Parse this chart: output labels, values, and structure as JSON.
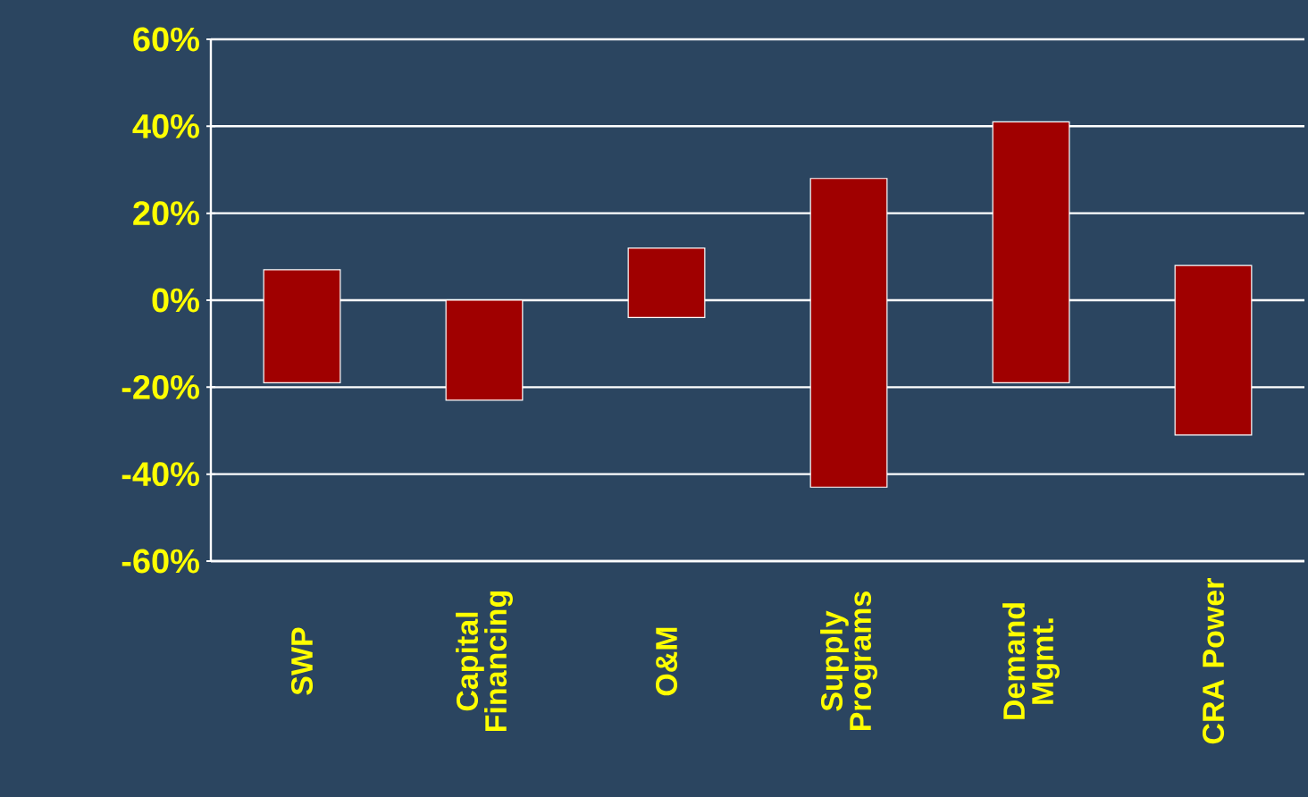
{
  "chart_data": {
    "type": "bar",
    "categories": [
      "SWP",
      "Capital Financing",
      "O&M",
      "Supply Programs",
      "Demand Mgmt.",
      "CRA Power"
    ],
    "base": [
      -19,
      -23,
      -4,
      -43,
      -19,
      -31
    ],
    "values": [
      26,
      23,
      16,
      71,
      60,
      39
    ],
    "color": "#a00000",
    "ylim": [
      -60,
      60
    ],
    "yticks": [
      {
        "value": -60,
        "label": "-60%"
      },
      {
        "value": -40,
        "label": "-40%"
      },
      {
        "value": -20,
        "label": "-20%"
      },
      {
        "value": 0,
        "label": "0%"
      },
      {
        "value": 20,
        "label": "20%"
      },
      {
        "value": 40,
        "label": "40%"
      },
      {
        "value": 60,
        "label": "60%"
      }
    ],
    "grid": "y"
  }
}
